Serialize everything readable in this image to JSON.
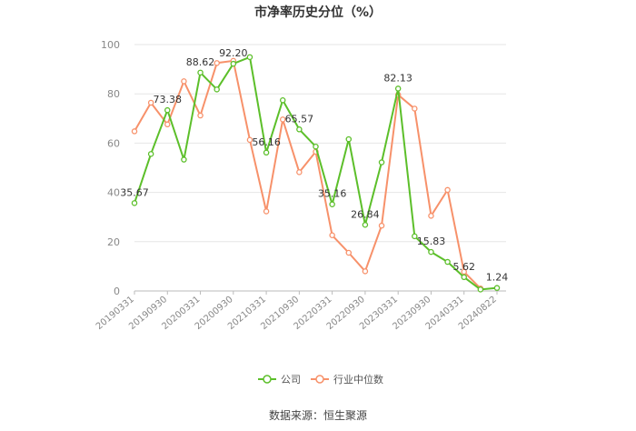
{
  "chart_data": {
    "type": "line",
    "title": "市净率历史分位（%）",
    "xlabel": "",
    "ylabel": "",
    "ylim": [
      0,
      100
    ],
    "yticks": [
      0,
      20,
      40,
      60,
      80,
      100
    ],
    "grid": true,
    "legend_position": "bottom",
    "x": [
      "20190331",
      "20190630",
      "20190930",
      "20191231",
      "20200331",
      "20200630",
      "20200930",
      "20201231",
      "20210331",
      "20210630",
      "20210930",
      "20211231",
      "20220331",
      "20220630",
      "20220930",
      "20221231",
      "20230331",
      "20230630",
      "20230930",
      "20231231",
      "20240331",
      "20240630",
      "20240822"
    ],
    "x_tick_labels": [
      "20190331",
      "20190930",
      "20200331",
      "20200930",
      "20210331",
      "20210930",
      "20220331",
      "20220930",
      "20230331",
      "20230930",
      "20240331",
      "20240822"
    ],
    "series": [
      {
        "name": "公司",
        "color": "#5cbf2a",
        "values": [
          35.67,
          55.6,
          73.38,
          53.3,
          88.62,
          81.8,
          92.2,
          94.9,
          56.16,
          77.4,
          65.57,
          58.6,
          35.16,
          61.6,
          26.84,
          52.2,
          82.13,
          22.2,
          15.83,
          11.8,
          5.62,
          0.6,
          1.24
        ],
        "labels": [
          "35.67",
          null,
          "73.38",
          null,
          "88.62",
          null,
          "92.20",
          null,
          "56.16",
          null,
          "65.57",
          null,
          "35.16",
          null,
          "26.84",
          null,
          "82.13",
          null,
          "15.83",
          null,
          "5.62",
          null,
          "1.24"
        ]
      },
      {
        "name": "行业中位数",
        "color": "#f7916a",
        "values": [
          64.8,
          76.4,
          67.6,
          85.1,
          71.2,
          92.5,
          93.4,
          61.3,
          32.3,
          69.6,
          48.2,
          56.5,
          22.6,
          15.5,
          8.0,
          26.5,
          79.6,
          74.0,
          30.5,
          41.0,
          7.8,
          1.0,
          null
        ]
      }
    ]
  },
  "source": "数据来源：恒生聚源"
}
